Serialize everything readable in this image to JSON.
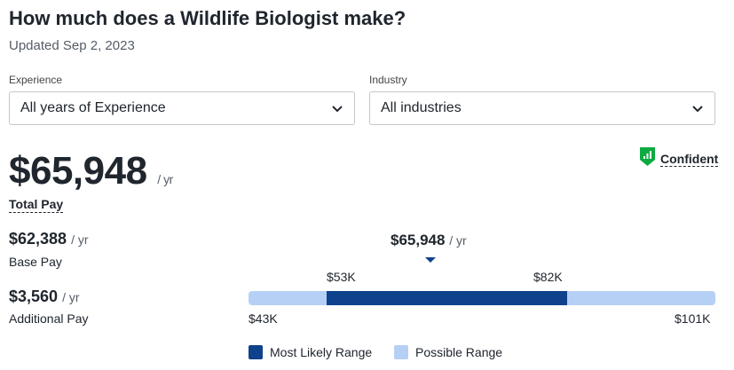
{
  "header": {
    "title": "How much does a Wildlife Biologist make?",
    "updated": "Updated Sep 2, 2023"
  },
  "filters": {
    "experience": {
      "label": "Experience",
      "value": "All years of Experience"
    },
    "industry": {
      "label": "Industry",
      "value": "All industries"
    }
  },
  "total_pay": {
    "amount": "$65,948",
    "unit": "/ yr",
    "label": "Total Pay",
    "confidence": "Confident"
  },
  "base_pay": {
    "amount": "$62,388",
    "unit": "/ yr",
    "label": "Base Pay"
  },
  "additional_pay": {
    "amount": "$3,560",
    "unit": "/ yr",
    "label": "Additional Pay"
  },
  "range": {
    "median": "$65,948",
    "median_unit": "/ yr",
    "likely_low": "$53K",
    "likely_high": "$82K",
    "possible_low": "$43K",
    "possible_high": "$101K"
  },
  "legend": {
    "likely": "Most Likely Range",
    "possible": "Possible Range"
  },
  "colors": {
    "likely": "#0f428c",
    "possible": "#b6d0f5",
    "confident_badge": "#0caa41"
  }
}
